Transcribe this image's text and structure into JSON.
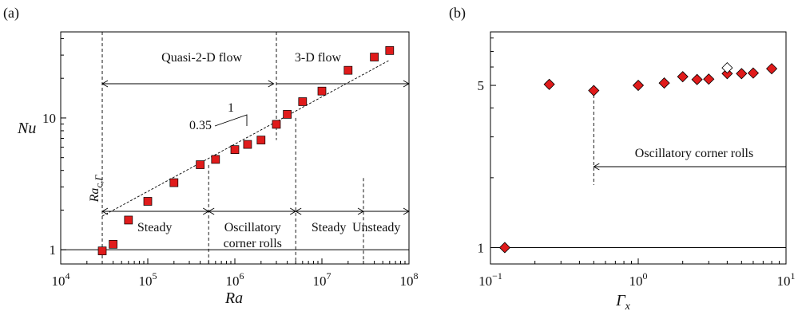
{
  "chart_data": [
    {
      "panel": "(a)",
      "type": "scatter",
      "xlabel": "Ra",
      "ylabel": "Nu",
      "xscale": "log",
      "yscale": "log",
      "xlim": [
        10000,
        100000000
      ],
      "ylim": [
        0.78,
        45
      ],
      "grid": false,
      "x_ticks": [
        {
          "value": 10000,
          "base": "10",
          "exp": "4"
        },
        {
          "value": 100000,
          "base": "10",
          "exp": "5"
        },
        {
          "value": 1000000,
          "base": "10",
          "exp": "6"
        },
        {
          "value": 10000000,
          "base": "10",
          "exp": "7"
        },
        {
          "value": 100000000,
          "base": "10",
          "exp": "8"
        }
      ],
      "y_ticks": [
        {
          "value": 1,
          "label": "1"
        },
        {
          "value": 10,
          "label": "10"
        }
      ],
      "series": [
        {
          "marker": "square",
          "color": "#e01b1b",
          "x": [
            30000,
            40000,
            60000,
            100000,
            200000,
            400000,
            600000,
            1000000,
            1400000,
            2000000,
            3000000,
            4000000,
            6000000,
            10000000,
            20000000,
            40000000,
            60000000
          ],
          "y": [
            0.98,
            1.1,
            1.68,
            2.33,
            3.23,
            4.42,
            4.85,
            5.75,
            6.3,
            6.8,
            8.95,
            10.65,
            13.3,
            16.0,
            23.0,
            29.0,
            32.5
          ]
        }
      ],
      "fit_line": {
        "x": [
          30000,
          60000000
        ],
        "y": [
          1.8,
          27.5
        ],
        "slope_label": "0.35",
        "run_label": "1"
      },
      "reference_line_y": 1,
      "annotations": {
        "ra_crit": "Ra",
        "ra_crit_sub": "c,Γ",
        "quasi2d": "Quasi-2-D flow",
        "flow3d": "3-D flow",
        "steady1": "Steady",
        "oscillatory_line1": "Oscillatory",
        "oscillatory_line2": "corner rolls",
        "steady2": "Steady",
        "unsteady": "Unsteady"
      }
    },
    {
      "panel": "(b)",
      "type": "scatter",
      "xlabel": "Γ",
      "xlabel_sub": "x",
      "xscale": "log",
      "yscale": "log",
      "xlim": [
        0.1,
        10
      ],
      "ylim": [
        0.85,
        8.5
      ],
      "grid": false,
      "x_ticks": [
        {
          "value": 0.1,
          "base": "10",
          "exp": "−1"
        },
        {
          "value": 1,
          "base": "10",
          "exp": "0"
        },
        {
          "value": 10,
          "base": "10",
          "exp": "1"
        }
      ],
      "y_ticks": [
        {
          "value": 1,
          "label": "1"
        },
        {
          "value": 5,
          "label": "5"
        }
      ],
      "series": [
        {
          "marker": "diamond",
          "color": "#e01b1b",
          "x": [
            0.125,
            0.25,
            0.5,
            1,
            1.5,
            2,
            2.5,
            3,
            4,
            5,
            6,
            8
          ],
          "y": [
            1.0,
            5.05,
            4.75,
            5.0,
            5.12,
            5.45,
            5.3,
            5.32,
            5.62,
            5.62,
            5.65,
            5.9
          ]
        },
        {
          "marker": "diamond",
          "color": "#ffffff",
          "x": [
            4
          ],
          "y": [
            5.95
          ]
        }
      ],
      "reference_line_y": 1,
      "annotations": {
        "oscillatory": "Oscillatory corner rolls"
      }
    }
  ]
}
